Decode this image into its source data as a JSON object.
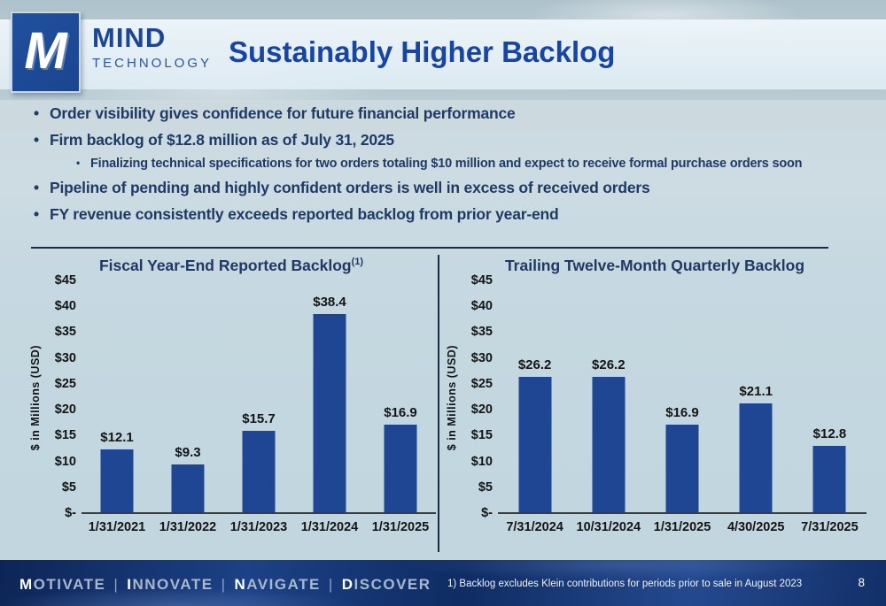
{
  "header": {
    "logo_letter": "M",
    "brand_name": "MIND",
    "brand_sub": "TECHNOLOGY",
    "title": "Sustainably Higher Backlog"
  },
  "bullets": [
    {
      "level": 1,
      "text": "Order visibility gives confidence for future financial performance"
    },
    {
      "level": 1,
      "text": "Firm backlog of $12.8 million as of July 31, 2025"
    },
    {
      "level": 2,
      "text": "Finalizing technical specifications for two orders totaling $10 million and expect to receive formal purchase orders soon"
    },
    {
      "level": 1,
      "text": "Pipeline of pending and highly confident orders is well in excess of received orders"
    },
    {
      "level": 1,
      "text": "FY revenue consistently exceeds reported backlog from prior year-end"
    }
  ],
  "chart_data": [
    {
      "type": "bar",
      "title": "Fiscal Year-End Reported Backlog",
      "title_superscript": "(1)",
      "categories": [
        "1/31/2021",
        "1/31/2022",
        "1/31/2023",
        "1/31/2024",
        "1/31/2025"
      ],
      "values": [
        12.1,
        9.3,
        15.7,
        38.4,
        16.9
      ],
      "value_labels": [
        "$12.1",
        "$9.3",
        "$15.7",
        "$38.4",
        "$16.9"
      ],
      "xlabel": "",
      "ylabel": "$ in Millions (USD)",
      "ylim": [
        0,
        45
      ],
      "ytick_labels": [
        "$-",
        "$5",
        "$10",
        "$15",
        "$20",
        "$25",
        "$30",
        "$35",
        "$40",
        "$45"
      ],
      "grid": false,
      "legend": "none",
      "bar_color": "#1e4693"
    },
    {
      "type": "bar",
      "title": "Trailing Twelve-Month Quarterly Backlog",
      "title_superscript": "",
      "categories": [
        "7/31/2024",
        "10/31/2024",
        "1/31/2025",
        "4/30/2025",
        "7/31/2025"
      ],
      "values": [
        26.2,
        26.2,
        16.9,
        21.1,
        12.8
      ],
      "value_labels": [
        "$26.2",
        "$26.2",
        "$16.9",
        "$21.1",
        "$12.8"
      ],
      "xlabel": "",
      "ylabel": "$ in Millions (USD)",
      "ylim": [
        0,
        45
      ],
      "ytick_labels": [
        "$-",
        "$5",
        "$10",
        "$15",
        "$20",
        "$25",
        "$30",
        "$35",
        "$40",
        "$45"
      ],
      "grid": false,
      "legend": "none",
      "bar_color": "#1e4693"
    }
  ],
  "footer": {
    "motto_words": [
      "MOTIVATE",
      "INNOVATE",
      "NAVIGATE",
      "DISCOVER"
    ],
    "motto_separator": "|",
    "footnote": "1) Backlog excludes Klein contributions for periods prior to sale in August 2023",
    "page_number": "8"
  },
  "colors": {
    "bar_blue": "#1e4693",
    "title_blue": "#1745a3",
    "bullet_navy": "#1e3a66",
    "chart_title_navy": "#1f3864",
    "footer_navy": "#11306b"
  }
}
